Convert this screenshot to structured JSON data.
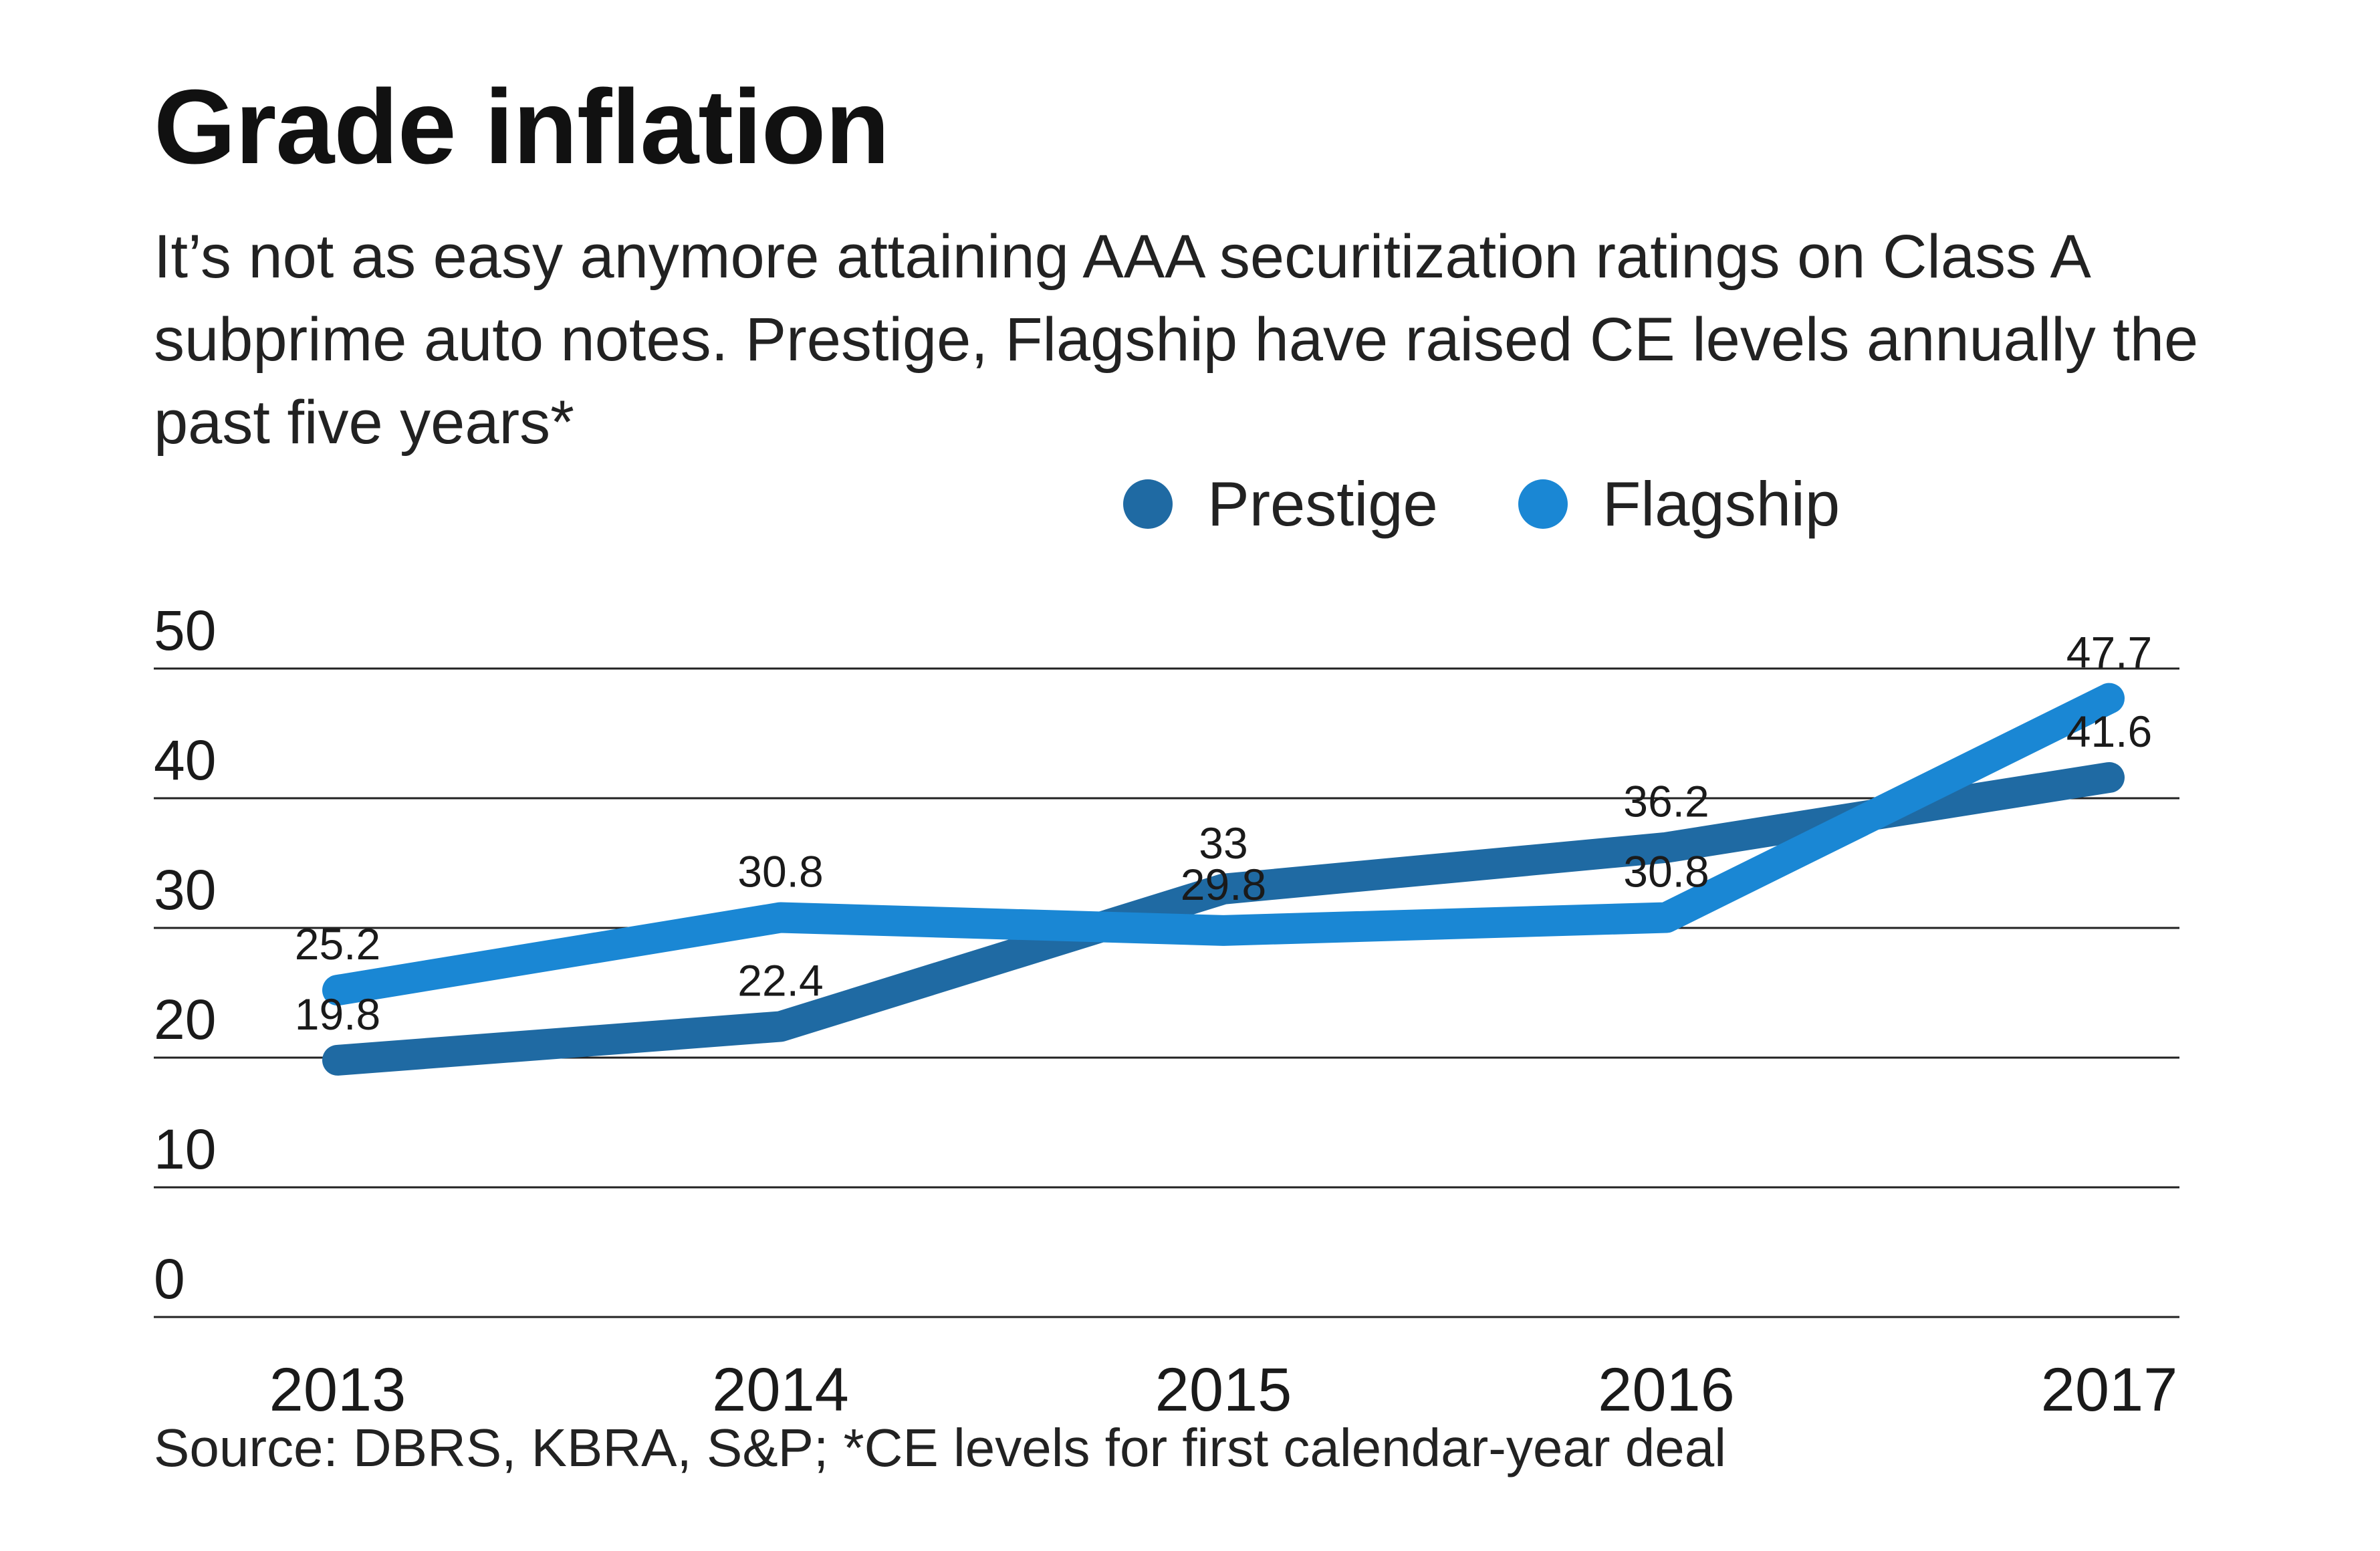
{
  "chart_data": {
    "type": "line",
    "title": "Grade inflation",
    "subtitle": "It’s not as easy anymore attaining AAA securitization ratings on Class A subprime auto notes. Prestige, Flagship have raised CE levels annually the past five years*",
    "categories": [
      "2013",
      "2014",
      "2015",
      "2016",
      "2017"
    ],
    "series": [
      {
        "name": "Prestige",
        "values": [
          19.8,
          22.4,
          33,
          36.2,
          41.6
        ],
        "labels": [
          "19.8",
          "22.4",
          "33",
          "36.2",
          "41.6"
        ],
        "color": "#1f6aa3"
      },
      {
        "name": "Flagship",
        "values": [
          25.2,
          30.8,
          29.8,
          30.8,
          47.7
        ],
        "labels": [
          "25.2",
          "30.8",
          "29.8",
          "30.8",
          "47.7"
        ],
        "color": "#1a87d4"
      }
    ],
    "yticks": [
      "0",
      "10",
      "20",
      "30",
      "40",
      "50"
    ],
    "ylim": [
      0,
      50
    ],
    "xlabel": "",
    "ylabel": "",
    "grid": true,
    "legend": "top-right",
    "source": "Source: DBRS, KBRA, S&P; *CE levels for first calendar-year deal"
  },
  "colors": {
    "gridline": "#222222",
    "text": "#1a1a1a"
  }
}
